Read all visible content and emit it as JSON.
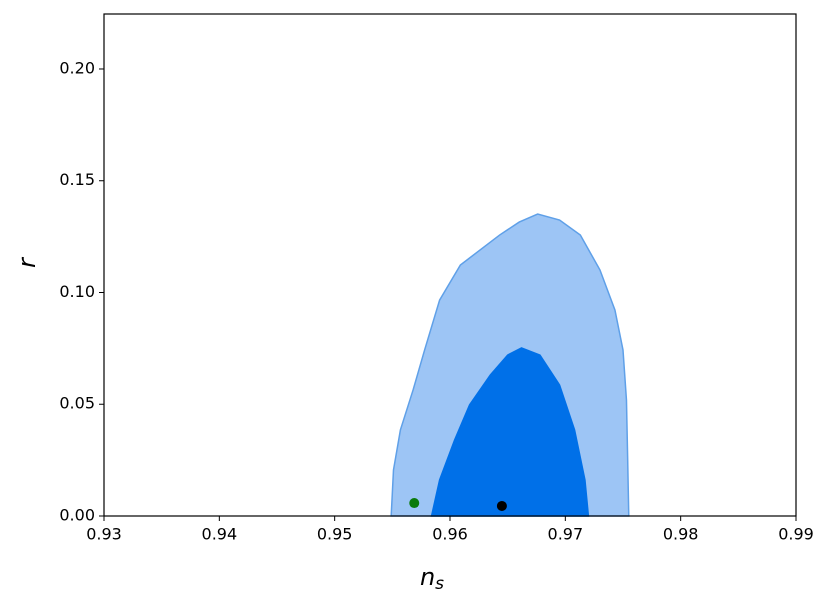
{
  "chart_data": {
    "type": "contour",
    "xlabel": "n",
    "xlabel_subscript": "s",
    "ylabel": "r",
    "xlim": [
      0.93,
      0.99
    ],
    "ylim": [
      0,
      0.2246
    ],
    "xticks": [
      0.93,
      0.94,
      0.95,
      0.96,
      0.97,
      0.98,
      0.99
    ],
    "yticks": [
      {
        "value": 0,
        "label": "0.00"
      },
      0.05,
      {
        "value": 0.1,
        "label": "0.10"
      },
      0.15,
      {
        "value": 0.2,
        "label": "0.20"
      }
    ],
    "regions": [
      {
        "color": "#9dc5f5",
        "edge": "#5fa0e8",
        "x": [
          0.9549,
          0.9551,
          0.9557,
          0.9568,
          0.9578,
          0.9591,
          0.9609,
          0.9643,
          0.966,
          0.9676,
          0.9695,
          0.9713,
          0.973,
          0.9743,
          0.975,
          0.9753,
          0.9754,
          0.9755
        ],
        "y": [
          0,
          0.0206,
          0.0385,
          0.0564,
          0.0743,
          0.0966,
          0.1123,
          0.1257,
          0.1315,
          0.1351,
          0.1324,
          0.1257,
          0.1101,
          0.0922,
          0.0743,
          0.0519,
          0.0268,
          0
        ]
      },
      {
        "color": "#0070e8",
        "edge": "#0070e8",
        "x": [
          0.9584,
          0.9591,
          0.9604,
          0.9617,
          0.9635,
          0.965,
          0.9662,
          0.9678,
          0.9695,
          0.9708,
          0.9717,
          0.972
        ],
        "y": [
          0,
          0.0161,
          0.034,
          0.0497,
          0.0631,
          0.072,
          0.0752,
          0.072,
          0.0586,
          0.0385,
          0.0161,
          0
        ]
      }
    ],
    "points": [
      {
        "color": "#0a7a0a",
        "x": 0.9569,
        "y": 0.0058
      },
      {
        "color": "#000000",
        "x": 0.9645,
        "y": 0.0045
      }
    ]
  }
}
